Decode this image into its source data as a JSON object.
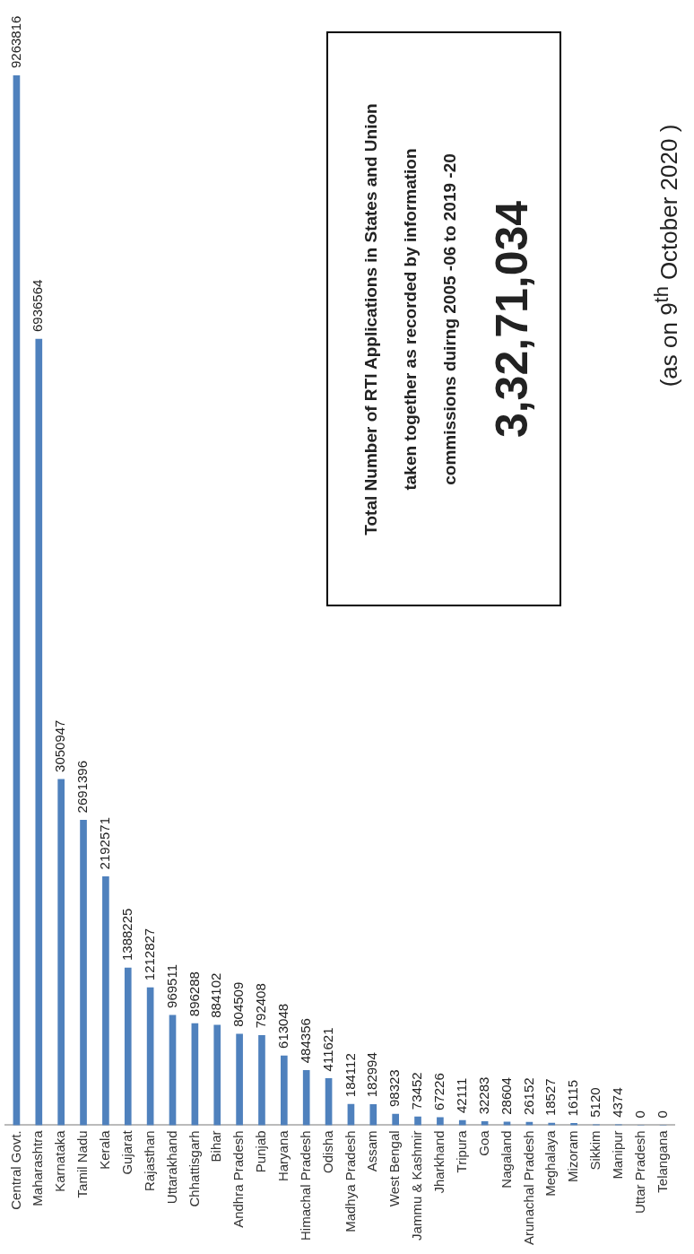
{
  "chart_data": {
    "type": "bar",
    "title": "Total Number of RTI Applications in States and Union taken together as recorded  by information commissions duirng 2005 -06 to 2019 -20",
    "subtitle": "3,32,71,034",
    "annotations": [
      "(as on 9$^{th}$ October 2020 )"
    ],
    "categories": [
      "Central Govt.",
      "Maharashtra",
      "Karnataka",
      "Tamil Nadu",
      "Kerala",
      "Gujarat",
      "Rajasthan",
      "Uttarakhand",
      "Chhattisgarh",
      "Bihar",
      "Andhra Pradesh",
      "Punjab",
      "Haryana",
      "Himachal Pradesh",
      "Odisha",
      "Madhya Pradesh",
      "Assam",
      "West Bengal",
      "Jammu & Kashmir",
      "Jharkhand",
      "Tripura",
      "Goa",
      "Nagaland",
      "Arunachal Pradesh",
      "Meghalaya",
      "Mizoram",
      "Sikkim",
      "Manipur",
      "Uttar Pradesh",
      "Telangana"
    ],
    "values": [
      9263816,
      6936564,
      3050947,
      2691396,
      2192571,
      1388225,
      1212827,
      969511,
      896288,
      884102,
      804509,
      792408,
      613048,
      484356,
      411621,
      184112,
      182994,
      98323,
      73452,
      67226,
      42111,
      32283,
      28604,
      26152,
      18527,
      16115,
      5120,
      4374,
      0,
      0
    ],
    "color": "#4f81bd",
    "data_labels": true,
    "grid": false,
    "legend": false
  }
}
